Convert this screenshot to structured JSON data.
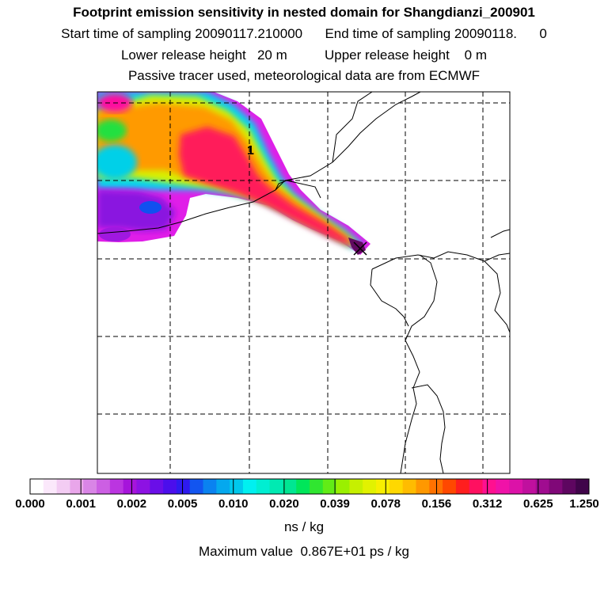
{
  "header": {
    "title": "Footprint emission sensitivity in nested domain for Shangdianzi_200901",
    "line2": "Start time of sampling 20090117.210000      End time of sampling 20090118.      0",
    "line3": "Lower release height   20 m          Upper release height    0 m",
    "line4": "Passive tracer used, meteorological data are from ECMWF"
  },
  "map": {
    "station_label": "1",
    "grid_lines": "dashed",
    "coastline_color": "#000000"
  },
  "colorbar": {
    "ticks": [
      "0.000",
      "0.001",
      "0.002",
      "0.005",
      "0.010",
      "0.020",
      "0.039",
      "0.078",
      "0.156",
      "0.312",
      "0.625",
      "1.250"
    ],
    "colors": [
      "#ffffff",
      "#fbe8fb",
      "#f3ccf3",
      "#e9a6ea",
      "#d985e6",
      "#cc5fe3",
      "#bb35e0",
      "#a614db",
      "#8d12e3",
      "#6a0ee8",
      "#4b0eec",
      "#2e1aef",
      "#1255f0",
      "#0a82f0",
      "#05a8ee",
      "#00c8ec",
      "#00f0f0",
      "#00eed2",
      "#00eab2",
      "#00e692",
      "#00e65a",
      "#30e630",
      "#62ec16",
      "#9af000",
      "#c6f000",
      "#e2f200",
      "#f8ef00",
      "#ffd800",
      "#ffbc00",
      "#ff9800",
      "#ff7200",
      "#ff4800",
      "#ff1e1e",
      "#ff1060",
      "#ff1090",
      "#f012a8",
      "#dc12a8",
      "#c0109e",
      "#a00c90",
      "#800878",
      "#5e0660",
      "#40044a"
    ],
    "units": "ns / kg",
    "max_value_text": "Maximum value  0.867E+01 ps / kg"
  }
}
